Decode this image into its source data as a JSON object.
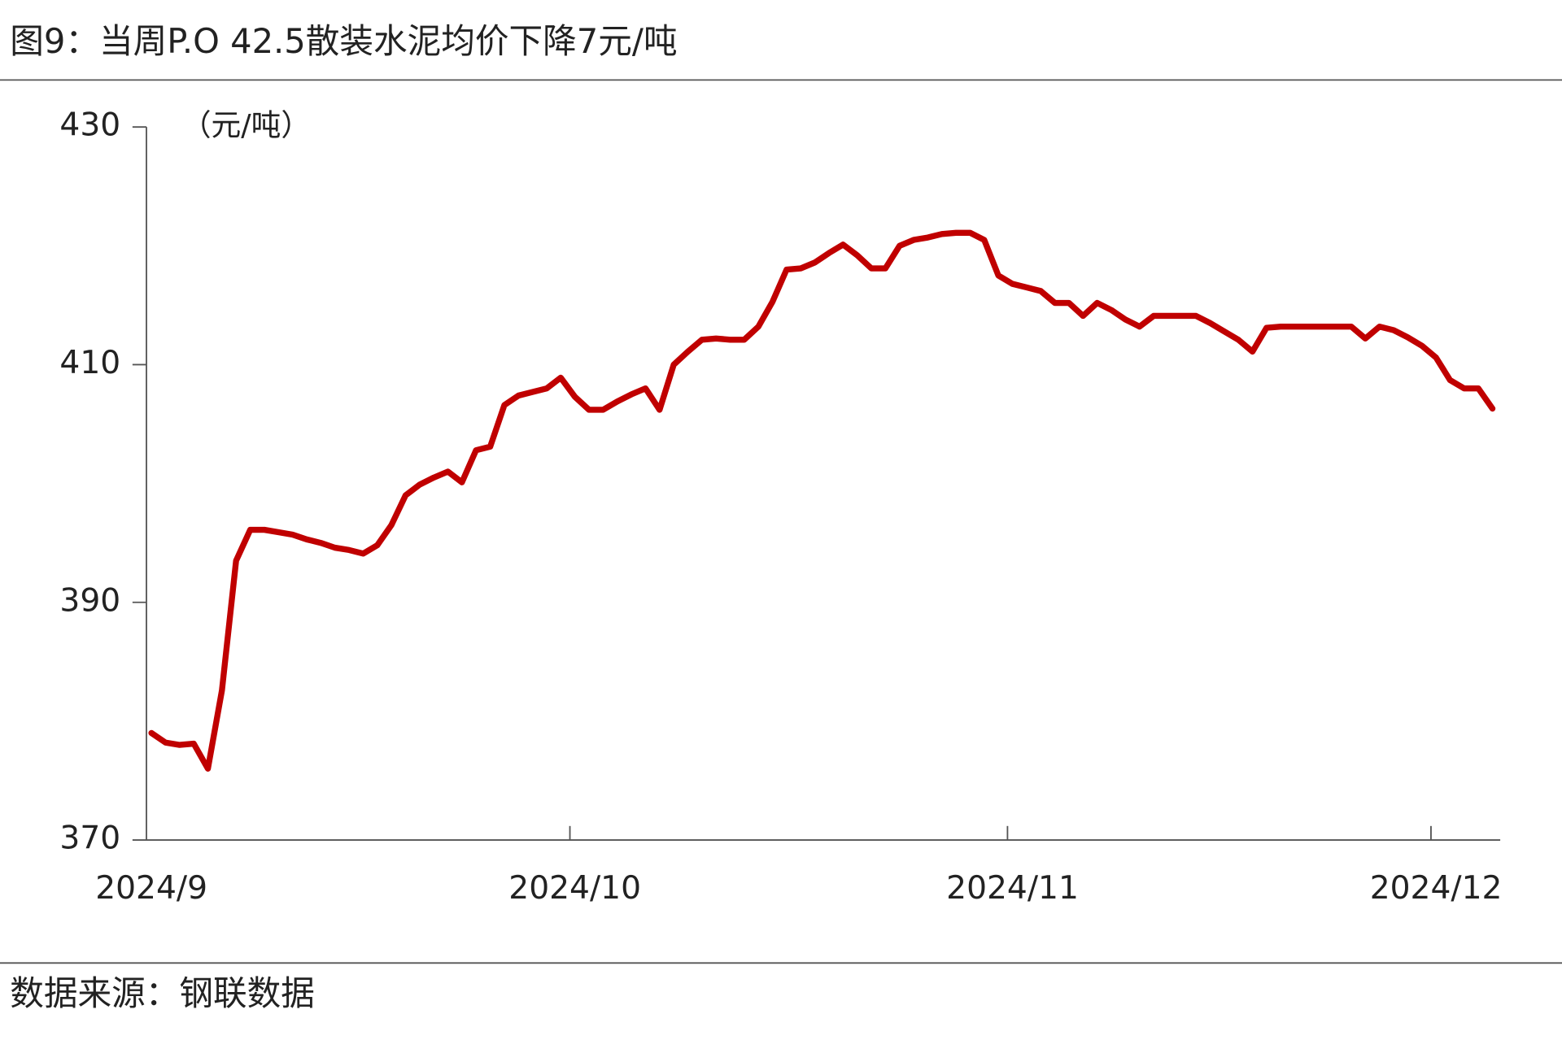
{
  "chart_data": {
    "type": "line",
    "title": "图9：当周P.O 42.5散装水泥均价下降7元/吨",
    "y_label": "（元/吨）",
    "source": "数据来源：钢联数据",
    "color": "#c00000",
    "categories": [
      "2024/9",
      null,
      null,
      null,
      null,
      null,
      null,
      null,
      null,
      null,
      null,
      null,
      null,
      null,
      null,
      null,
      null,
      null,
      null,
      null,
      null,
      null,
      null,
      null,
      null,
      null,
      null,
      null,
      null,
      null,
      "2024/10",
      null,
      null,
      null,
      null,
      null,
      null,
      null,
      null,
      null,
      null,
      null,
      null,
      null,
      null,
      null,
      null,
      null,
      null,
      null,
      null,
      null,
      null,
      null,
      null,
      null,
      null,
      null,
      null,
      null,
      null,
      "2024/11",
      null,
      null,
      null,
      null,
      null,
      null,
      null,
      null,
      null,
      null,
      null,
      null,
      null,
      null,
      null,
      null,
      null,
      null,
      null,
      null,
      null,
      null,
      null,
      null,
      null,
      null,
      null,
      null,
      null,
      "2024/12",
      null,
      null,
      null,
      null
    ],
    "values": [
      379.0,
      378.2,
      378.0,
      378.1,
      376.0,
      382.6,
      393.5,
      396.1,
      396.1,
      395.9,
      395.7,
      395.3,
      395.0,
      394.6,
      394.4,
      394.1,
      394.8,
      396.5,
      399.0,
      399.9,
      400.5,
      401.0,
      400.1,
      402.8,
      403.1,
      406.6,
      407.4,
      407.7,
      408.0,
      408.9,
      407.3,
      406.2,
      406.2,
      406.9,
      407.5,
      408.0,
      406.2,
      410.0,
      411.1,
      412.1,
      412.2,
      412.1,
      412.1,
      413.2,
      415.3,
      418.0,
      418.1,
      418.6,
      419.4,
      420.1,
      419.2,
      418.1,
      418.1,
      420.0,
      420.5,
      420.7,
      421.0,
      421.1,
      421.1,
      420.5,
      417.5,
      416.8,
      416.5,
      416.2,
      415.2,
      415.2,
      414.1,
      415.2,
      414.6,
      413.8,
      413.2,
      414.1,
      414.1,
      414.1,
      414.1,
      413.5,
      412.8,
      412.1,
      411.1,
      413.1,
      413.2,
      413.2,
      413.2,
      413.2,
      413.2,
      413.2,
      412.2,
      413.2,
      412.9,
      412.3,
      411.6,
      410.6,
      408.7,
      408.0,
      408.0,
      406.3
    ],
    "ylim": [
      370,
      430
    ],
    "yticks": [
      370,
      390,
      410,
      430
    ]
  }
}
